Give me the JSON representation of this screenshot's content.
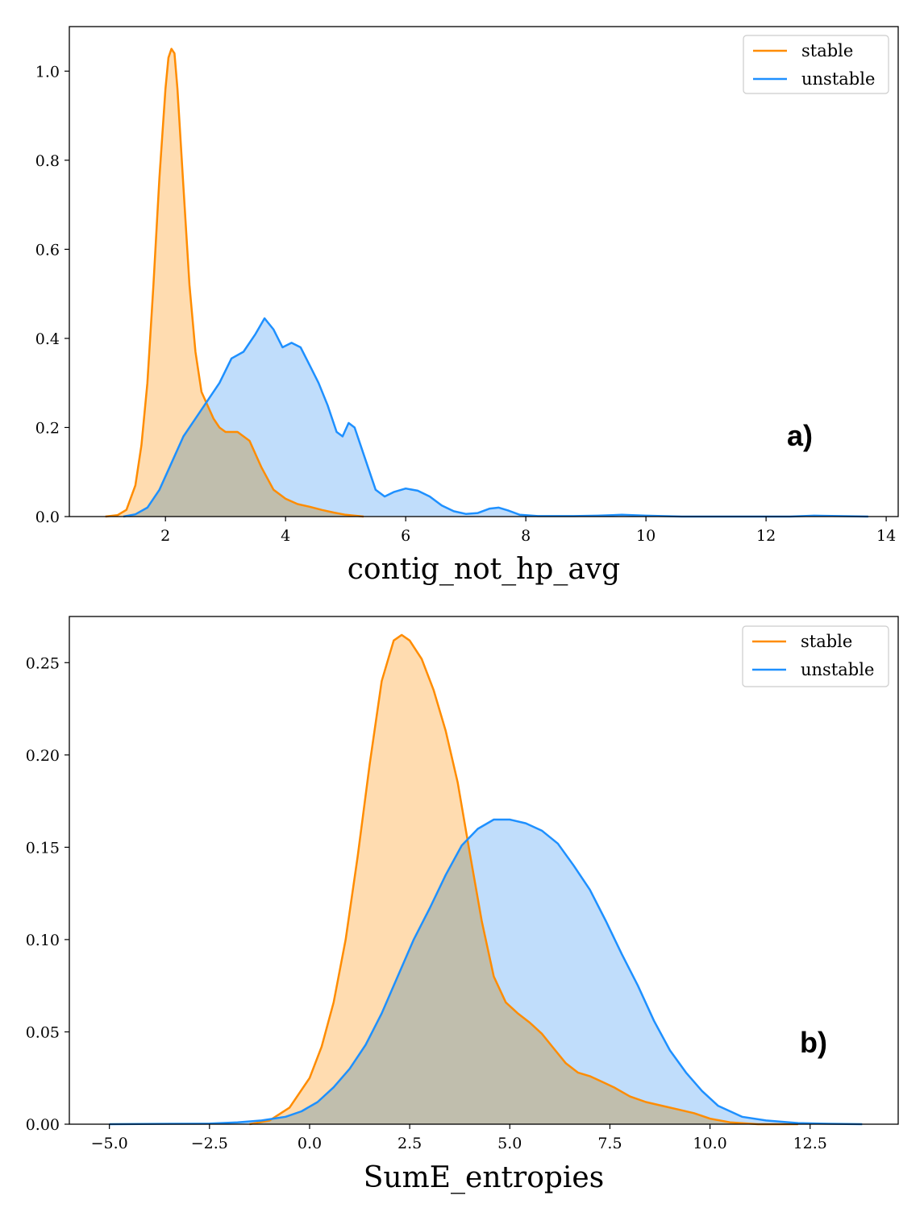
{
  "chart_data": [
    {
      "type": "area",
      "panel_label": "a)",
      "xlabel": "contig_not_hp_avg",
      "ylabel": "",
      "xlim": [
        0.4,
        14.2
      ],
      "ylim": [
        0,
        1.1
      ],
      "xticks": [
        2,
        4,
        6,
        8,
        10,
        12,
        14
      ],
      "yticks": [
        0.0,
        0.2,
        0.4,
        0.6,
        0.8,
        1.0
      ],
      "ytick_decimals": 1,
      "legend_position": "top-right",
      "series": [
        {
          "name": "stable",
          "color": "#ff8c00",
          "fill": "#ffdcb0",
          "points": [
            [
              1.0,
              0.0
            ],
            [
              1.2,
              0.003
            ],
            [
              1.35,
              0.015
            ],
            [
              1.5,
              0.07
            ],
            [
              1.6,
              0.16
            ],
            [
              1.7,
              0.3
            ],
            [
              1.8,
              0.52
            ],
            [
              1.9,
              0.76
            ],
            [
              2.0,
              0.96
            ],
            [
              2.05,
              1.03
            ],
            [
              2.1,
              1.05
            ],
            [
              2.15,
              1.04
            ],
            [
              2.2,
              0.96
            ],
            [
              2.3,
              0.74
            ],
            [
              2.4,
              0.52
            ],
            [
              2.5,
              0.37
            ],
            [
              2.6,
              0.28
            ],
            [
              2.7,
              0.25
            ],
            [
              2.8,
              0.22
            ],
            [
              2.9,
              0.2
            ],
            [
              3.0,
              0.19
            ],
            [
              3.2,
              0.19
            ],
            [
              3.4,
              0.17
            ],
            [
              3.6,
              0.11
            ],
            [
              3.8,
              0.06
            ],
            [
              4.0,
              0.04
            ],
            [
              4.2,
              0.028
            ],
            [
              4.4,
              0.022
            ],
            [
              4.6,
              0.015
            ],
            [
              4.8,
              0.009
            ],
            [
              5.0,
              0.004
            ],
            [
              5.3,
              0.0
            ]
          ]
        },
        {
          "name": "unstable",
          "color": "#1e90ff",
          "fill": "#c0ddfb",
          "points": [
            [
              1.3,
              0.0
            ],
            [
              1.5,
              0.005
            ],
            [
              1.7,
              0.02
            ],
            [
              1.9,
              0.06
            ],
            [
              2.1,
              0.12
            ],
            [
              2.3,
              0.18
            ],
            [
              2.5,
              0.22
            ],
            [
              2.7,
              0.26
            ],
            [
              2.9,
              0.3
            ],
            [
              3.1,
              0.355
            ],
            [
              3.3,
              0.37
            ],
            [
              3.5,
              0.41
            ],
            [
              3.65,
              0.445
            ],
            [
              3.8,
              0.42
            ],
            [
              3.95,
              0.38
            ],
            [
              4.1,
              0.39
            ],
            [
              4.25,
              0.38
            ],
            [
              4.4,
              0.34
            ],
            [
              4.55,
              0.3
            ],
            [
              4.7,
              0.25
            ],
            [
              4.85,
              0.19
            ],
            [
              4.95,
              0.18
            ],
            [
              5.05,
              0.21
            ],
            [
              5.15,
              0.2
            ],
            [
              5.35,
              0.12
            ],
            [
              5.5,
              0.06
            ],
            [
              5.65,
              0.045
            ],
            [
              5.8,
              0.055
            ],
            [
              6.0,
              0.063
            ],
            [
              6.2,
              0.058
            ],
            [
              6.4,
              0.045
            ],
            [
              6.6,
              0.025
            ],
            [
              6.8,
              0.012
            ],
            [
              7.0,
              0.006
            ],
            [
              7.2,
              0.008
            ],
            [
              7.4,
              0.018
            ],
            [
              7.55,
              0.02
            ],
            [
              7.7,
              0.014
            ],
            [
              7.9,
              0.004
            ],
            [
              8.2,
              0.001
            ],
            [
              8.8,
              0.001
            ],
            [
              9.2,
              0.002
            ],
            [
              9.6,
              0.004
            ],
            [
              10.0,
              0.002
            ],
            [
              10.6,
              0.0
            ],
            [
              12.4,
              0.0
            ],
            [
              12.8,
              0.002
            ],
            [
              13.2,
              0.001
            ],
            [
              13.7,
              0.0
            ]
          ]
        }
      ]
    },
    {
      "type": "area",
      "panel_label": "b)",
      "xlabel": "SumE_entropies",
      "ylabel": "",
      "xlim": [
        -6.0,
        14.7
      ],
      "ylim": [
        0,
        0.275
      ],
      "xticks": [
        -5.0,
        -2.5,
        0.0,
        2.5,
        5.0,
        7.5,
        10.0,
        12.5
      ],
      "yticks": [
        0.0,
        0.05,
        0.1,
        0.15,
        0.2,
        0.25
      ],
      "ytick_decimals": 2,
      "legend_position": "top-right",
      "series": [
        {
          "name": "stable",
          "color": "#ff8c00",
          "fill": "#ffdcb0",
          "points": [
            [
              -1.5,
              0.0
            ],
            [
              -1.0,
              0.002
            ],
            [
              -0.5,
              0.009
            ],
            [
              0.0,
              0.025
            ],
            [
              0.3,
              0.042
            ],
            [
              0.6,
              0.066
            ],
            [
              0.9,
              0.1
            ],
            [
              1.2,
              0.145
            ],
            [
              1.5,
              0.195
            ],
            [
              1.8,
              0.24
            ],
            [
              2.1,
              0.262
            ],
            [
              2.3,
              0.265
            ],
            [
              2.5,
              0.262
            ],
            [
              2.8,
              0.252
            ],
            [
              3.1,
              0.235
            ],
            [
              3.4,
              0.213
            ],
            [
              3.7,
              0.185
            ],
            [
              4.0,
              0.147
            ],
            [
              4.3,
              0.11
            ],
            [
              4.6,
              0.08
            ],
            [
              4.9,
              0.066
            ],
            [
              5.2,
              0.06
            ],
            [
              5.5,
              0.055
            ],
            [
              5.8,
              0.049
            ],
            [
              6.1,
              0.041
            ],
            [
              6.4,
              0.033
            ],
            [
              6.7,
              0.028
            ],
            [
              7.0,
              0.026
            ],
            [
              7.3,
              0.023
            ],
            [
              7.6,
              0.02
            ],
            [
              8.0,
              0.015
            ],
            [
              8.4,
              0.012
            ],
            [
              8.8,
              0.01
            ],
            [
              9.2,
              0.008
            ],
            [
              9.6,
              0.006
            ],
            [
              10.0,
              0.003
            ],
            [
              10.5,
              0.001
            ],
            [
              11.2,
              0.0
            ],
            [
              12.2,
              0.0
            ]
          ]
        },
        {
          "name": "unstable",
          "color": "#1e90ff",
          "fill": "#c0ddfb",
          "points": [
            [
              -5.0,
              0.0
            ],
            [
              -3.5,
              0.0002
            ],
            [
              -2.5,
              0.0003
            ],
            [
              -1.8,
              0.001
            ],
            [
              -1.2,
              0.002
            ],
            [
              -0.6,
              0.004
            ],
            [
              -0.2,
              0.007
            ],
            [
              0.2,
              0.012
            ],
            [
              0.6,
              0.02
            ],
            [
              1.0,
              0.03
            ],
            [
              1.4,
              0.043
            ],
            [
              1.8,
              0.06
            ],
            [
              2.2,
              0.08
            ],
            [
              2.6,
              0.1
            ],
            [
              3.0,
              0.117
            ],
            [
              3.4,
              0.135
            ],
            [
              3.8,
              0.151
            ],
            [
              4.2,
              0.16
            ],
            [
              4.6,
              0.165
            ],
            [
              5.0,
              0.165
            ],
            [
              5.4,
              0.163
            ],
            [
              5.8,
              0.159
            ],
            [
              6.2,
              0.152
            ],
            [
              6.6,
              0.14
            ],
            [
              7.0,
              0.127
            ],
            [
              7.4,
              0.11
            ],
            [
              7.8,
              0.092
            ],
            [
              8.2,
              0.075
            ],
            [
              8.6,
              0.056
            ],
            [
              9.0,
              0.04
            ],
            [
              9.4,
              0.028
            ],
            [
              9.8,
              0.018
            ],
            [
              10.2,
              0.01
            ],
            [
              10.8,
              0.004
            ],
            [
              11.4,
              0.002
            ],
            [
              12.2,
              0.0006
            ],
            [
              13.0,
              0.0002
            ],
            [
              13.8,
              0.0
            ]
          ]
        }
      ]
    }
  ]
}
